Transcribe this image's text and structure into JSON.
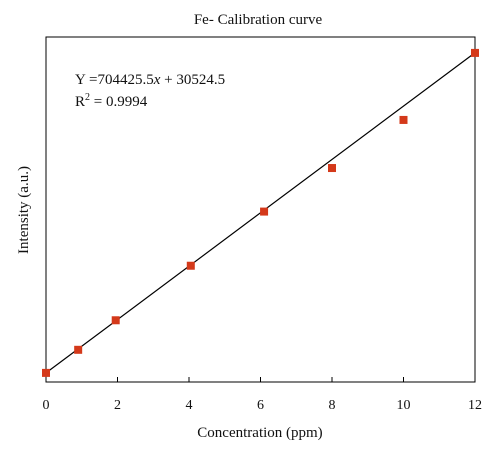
{
  "chart_data": {
    "type": "scatter",
    "title": "Fe- Calibration curve",
    "xlabel": "Concentration (ppm)",
    "ylabel": "Intensity (a.u.)",
    "xlim": [
      0,
      12
    ],
    "ylim": [
      -210000,
      8900000
    ],
    "x_ticks": [
      "0",
      "2",
      "4",
      "6",
      "8",
      "10",
      "12"
    ],
    "grid": false,
    "legend": "none",
    "series": [
      {
        "x": [
          0,
          0.9,
          1.95,
          4.05,
          6.1,
          8.0,
          10.0,
          12.0
        ],
        "y": [
          30524,
          640000,
          1420000,
          2860000,
          4290000,
          5440000,
          6710000,
          8480000
        ],
        "color": "#d4391a",
        "marker": "square"
      }
    ],
    "fit": {
      "slope": 704425.5,
      "intercept": 30524.5,
      "color": "#000000"
    },
    "annotations": {
      "equation": {
        "prefix": "Y =704425.5",
        "variable": "x",
        "suffix": " + 30524.5"
      },
      "r_squared": {
        "prefix": "R",
        "superscript": "2",
        "suffix": " = 0.9994"
      }
    }
  }
}
